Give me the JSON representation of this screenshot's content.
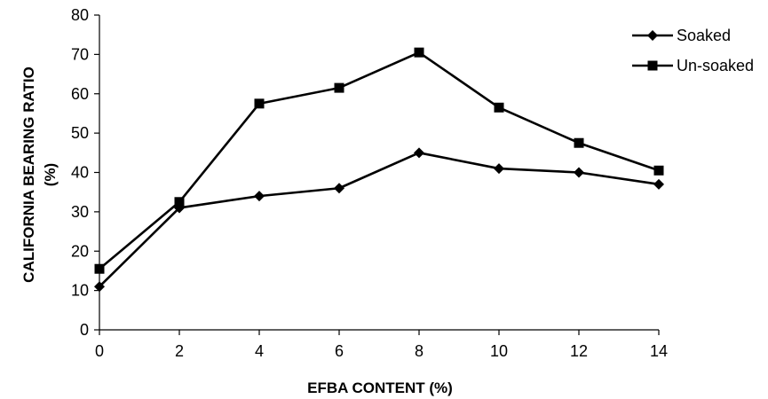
{
  "chart_data": {
    "type": "line",
    "xlabel": "EFBA CONTENT (%)",
    "ylabel": [
      "CALIFORNIA BEARING RATIO",
      "(%)"
    ],
    "xlim": [
      0,
      14
    ],
    "ylim": [
      0,
      80
    ],
    "xticks": [
      0,
      2,
      4,
      6,
      8,
      10,
      12,
      14
    ],
    "yticks": [
      0,
      10,
      20,
      30,
      40,
      50,
      60,
      70,
      80
    ],
    "grid": false,
    "legend_position": "top-right",
    "colors": {
      "line": "#000000"
    },
    "x": [
      0,
      2,
      4,
      6,
      8,
      10,
      12,
      14
    ],
    "series": [
      {
        "name": "Soaked",
        "marker": "diamond",
        "values": [
          11,
          31,
          34,
          36,
          45,
          41,
          40,
          37
        ]
      },
      {
        "name": "Un-soaked",
        "marker": "square",
        "values": [
          15.5,
          32.5,
          57.5,
          61.5,
          70.5,
          56.5,
          47.5,
          40.5
        ]
      }
    ]
  }
}
